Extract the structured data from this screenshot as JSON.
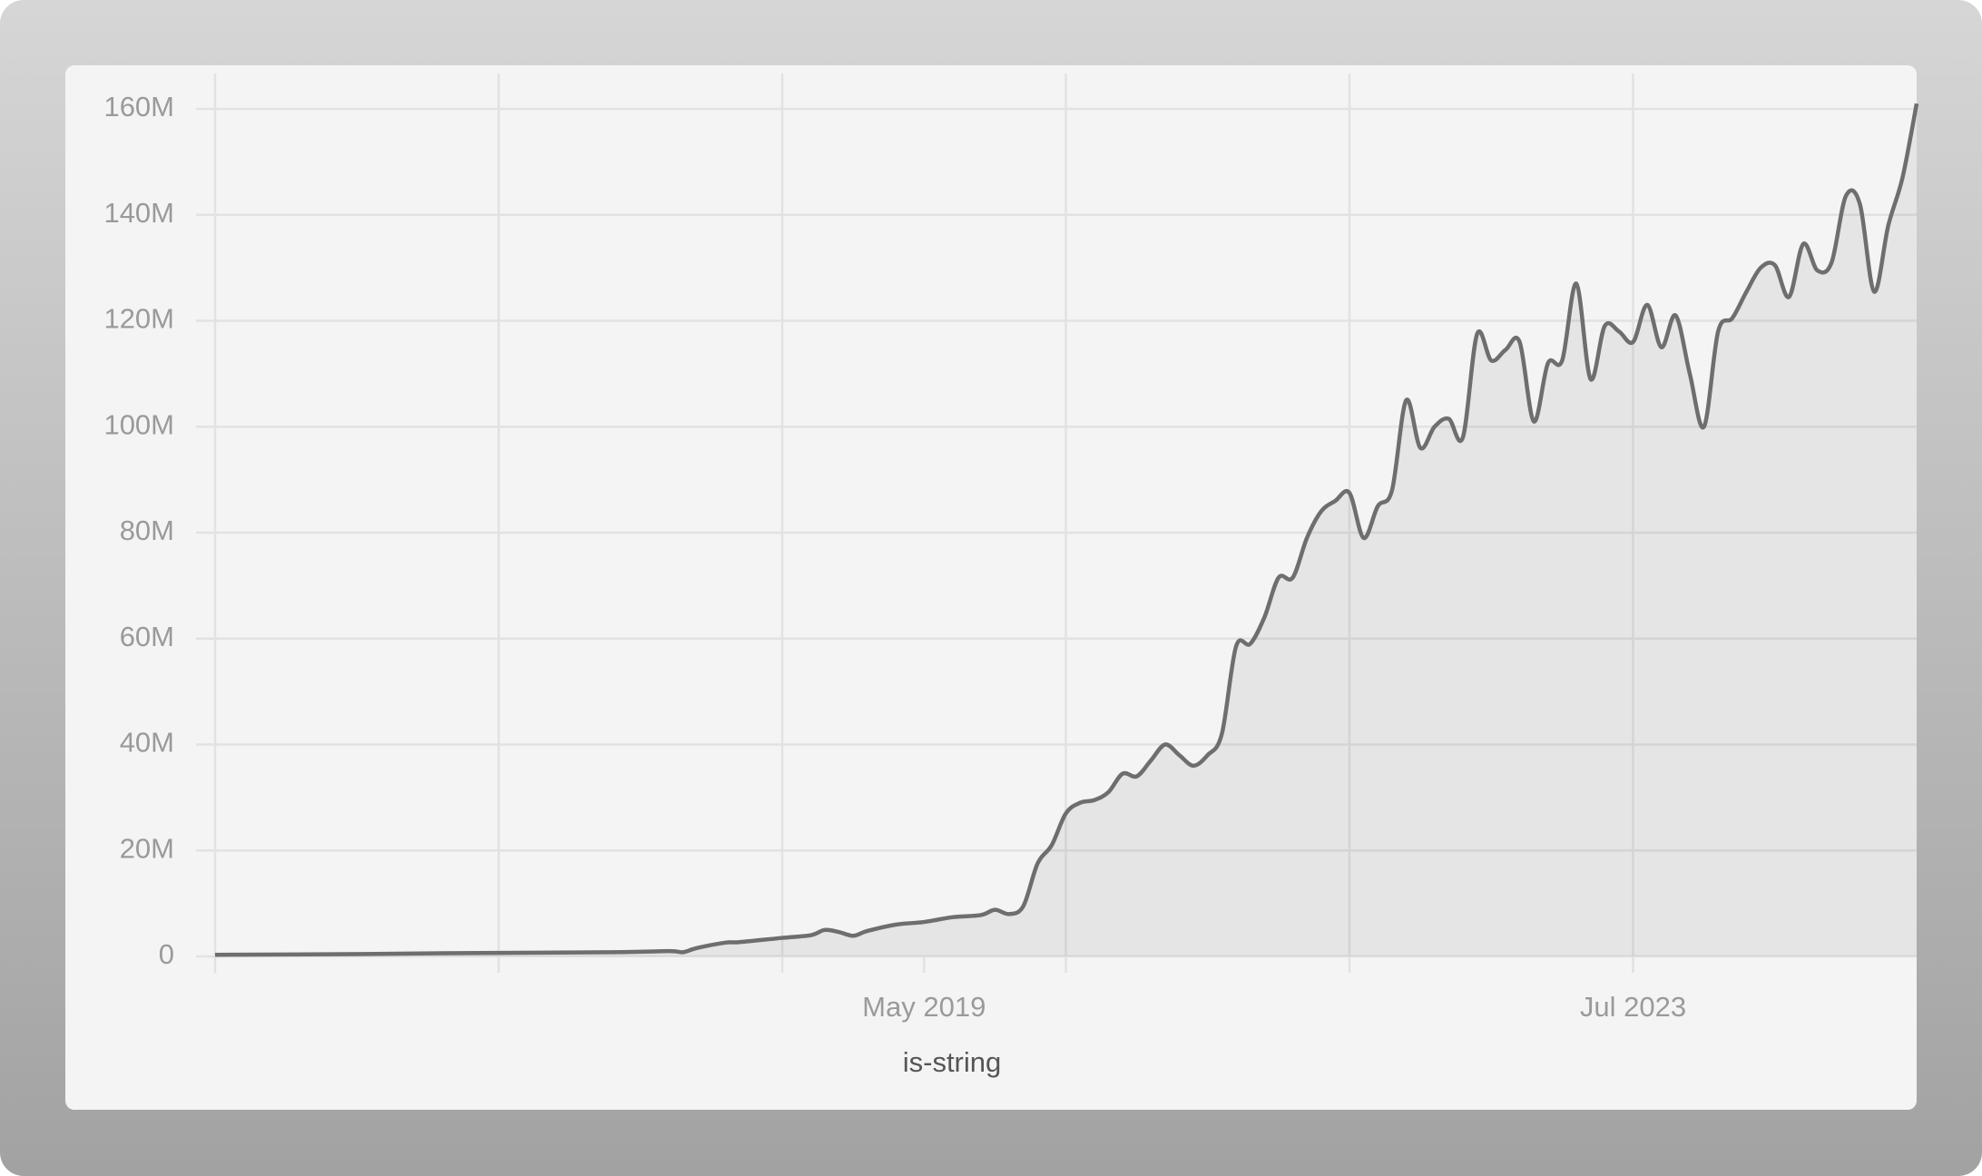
{
  "chart_data": {
    "type": "line",
    "x": [
      "2015-03",
      "2015-11",
      "2016-07",
      "2017-07",
      "2017-11",
      "2017-12",
      "2018-01",
      "2018-03",
      "2018-04",
      "2018-07",
      "2018-09",
      "2018-10",
      "2018-11",
      "2018-12",
      "2019-01",
      "2019-03",
      "2019-05",
      "2019-07",
      "2019-09",
      "2019-10",
      "2019-11",
      "2019-12",
      "2020-01",
      "2020-02",
      "2020-03",
      "2020-04",
      "2020-05",
      "2020-06",
      "2020-07",
      "2020-08",
      "2020-09",
      "2020-10",
      "2020-11",
      "2020-12",
      "2021-01",
      "2021-02",
      "2021-03",
      "2021-04",
      "2021-05",
      "2021-06",
      "2021-07",
      "2021-08",
      "2021-09",
      "2021-10",
      "2021-11",
      "2021-12",
      "2022-01",
      "2022-02",
      "2022-03",
      "2022-04",
      "2022-05",
      "2022-06",
      "2022-07",
      "2022-08",
      "2022-09",
      "2022-10",
      "2022-11",
      "2022-12",
      "2023-01",
      "2023-02",
      "2023-03",
      "2023-04",
      "2023-05",
      "2023-06",
      "2023-07",
      "2023-08",
      "2023-09",
      "2023-10",
      "2023-11",
      "2023-12",
      "2024-01",
      "2024-02",
      "2024-03",
      "2024-04",
      "2024-05",
      "2024-06",
      "2024-07",
      "2024-08",
      "2024-09",
      "2024-10",
      "2024-11",
      "2024-12",
      "2025-01",
      "2025-02",
      "2025-03"
    ],
    "series": [
      {
        "name": "is-string",
        "color": "#6e6e6e",
        "values": [
          300000,
          400000,
          600000,
          800000,
          1000000,
          800000,
          1600000,
          2600000,
          2700000,
          3500000,
          4000000,
          5000000,
          4600000,
          3900000,
          4800000,
          6000000,
          6500000,
          7400000,
          7800000,
          8800000,
          8000000,
          9500000,
          17500000,
          21000000,
          27000000,
          29000000,
          29500000,
          31000000,
          34500000,
          34000000,
          37000000,
          40000000,
          38000000,
          36000000,
          38000000,
          42000000,
          58500000,
          59000000,
          64000000,
          71500000,
          71500000,
          79000000,
          84000000,
          86000000,
          87500000,
          79000000,
          85000000,
          88000000,
          105000000,
          96000000,
          100000000,
          101500000,
          98000000,
          117500000,
          112500000,
          114500000,
          116000000,
          101000000,
          112000000,
          112500000,
          127000000,
          109000000,
          119000000,
          118000000,
          116000000,
          123000000,
          115000000,
          121000000,
          110000000,
          100000000,
          118000000,
          120500000,
          125500000,
          130000000,
          130500000,
          124500000,
          134500000,
          129500000,
          131000000,
          143500000,
          142000000,
          125500000,
          138000000,
          147000000,
          161000000
        ]
      }
    ],
    "xlim": [
      "2015-03",
      "2025-03"
    ],
    "xticks": [
      {
        "value": "2019-05",
        "label": "May 2019"
      },
      {
        "value": "2023-07",
        "label": "Jul 2023"
      }
    ],
    "x_gridlines": [
      "2015-03",
      "2016-11",
      "2018-07",
      "2020-03",
      "2021-11",
      "2023-07"
    ],
    "ylim": [
      0,
      160000000
    ],
    "yticks": [
      0,
      {
        "value": 20000000,
        "label": "20M"
      },
      {
        "value": 40000000,
        "label": "40M"
      },
      {
        "value": 60000000,
        "label": "60M"
      },
      {
        "value": 80000000,
        "label": "80M"
      },
      {
        "value": 100000000,
        "label": "100M"
      },
      {
        "value": 120000000,
        "label": "120M"
      },
      {
        "value": 140000000,
        "label": "140M"
      },
      {
        "value": 160000000,
        "label": "160M"
      }
    ],
    "grid": true,
    "area_fill": true
  }
}
